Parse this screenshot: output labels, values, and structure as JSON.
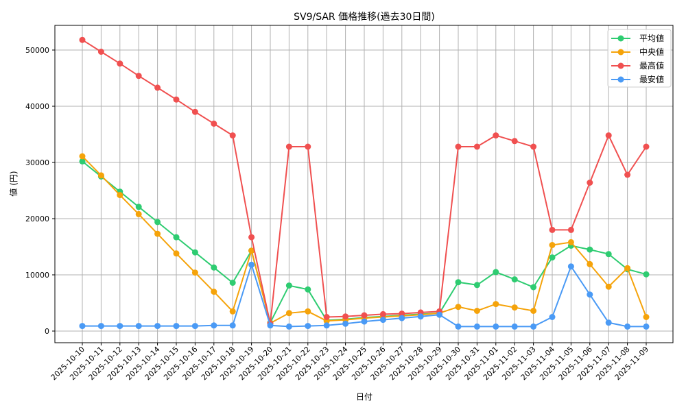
{
  "chart_data": {
    "type": "line",
    "title": "SV9/SAR 価格推移(過去30日間)",
    "xlabel": "日付",
    "ylabel": "値 (円)",
    "ylim": [
      -2000,
      54500
    ],
    "yticks": [
      0,
      10000,
      20000,
      30000,
      40000,
      50000
    ],
    "grid": true,
    "legend_position": "upper right",
    "categories": [
      "2025-10-10",
      "2025-10-11",
      "2025-10-12",
      "2025-10-13",
      "2025-10-14",
      "2025-10-15",
      "2025-10-16",
      "2025-10-17",
      "2025-10-18",
      "2025-10-19",
      "2025-10-20",
      "2025-10-21",
      "2025-10-22",
      "2025-10-23",
      "2025-10-24",
      "2025-10-25",
      "2025-10-26",
      "2025-10-27",
      "2025-10-28",
      "2025-10-29",
      "2025-10-30",
      "2025-10-31",
      "2025-11-01",
      "2025-11-02",
      "2025-11-03",
      "2025-11-04",
      "2025-11-05",
      "2025-11-06",
      "2025-11-07",
      "2025-11-08",
      "2025-11-09"
    ],
    "series": [
      {
        "name": "平均値",
        "color": "#2ecc71",
        "values": [
          30200,
          27500,
          24800,
          22100,
          19400,
          16700,
          14000,
          11300,
          8600,
          14300,
          1500,
          8100,
          7400,
          1900,
          2100,
          2400,
          2600,
          2800,
          3000,
          3200,
          8700,
          8200,
          10500,
          9200,
          7800,
          13100,
          15200,
          14500,
          13700,
          11000,
          10100
        ]
      },
      {
        "name": "中央値",
        "color": "#f5a30a",
        "values": [
          31100,
          27700,
          24200,
          20800,
          17300,
          13800,
          10400,
          7000,
          3500,
          14300,
          1400,
          3200,
          3500,
          1800,
          2000,
          2300,
          2500,
          2700,
          2900,
          3200,
          4300,
          3600,
          4800,
          4200,
          3600,
          15300,
          15800,
          11900,
          7900,
          11200,
          2500
        ]
      },
      {
        "name": "最高値",
        "color": "#f05050",
        "values": [
          51800,
          49700,
          47600,
          45400,
          43300,
          41200,
          39000,
          36900,
          34800,
          16700,
          1300,
          32800,
          32800,
          2500,
          2600,
          2800,
          3000,
          3100,
          3300,
          3500,
          32800,
          32800,
          34800,
          33800,
          32800,
          18000,
          18000,
          26400,
          34800,
          27800,
          32800
        ]
      },
      {
        "name": "最安値",
        "color": "#4a9af5",
        "values": [
          900,
          900,
          900,
          900,
          900,
          900,
          900,
          1000,
          1000,
          11800,
          1000,
          800,
          900,
          1000,
          1300,
          1700,
          2000,
          2300,
          2600,
          2900,
          800,
          800,
          800,
          800,
          800,
          2500,
          11500,
          6500,
          1500,
          800,
          800
        ]
      }
    ]
  },
  "legend": {
    "items": [
      {
        "label": "平均値",
        "color": "#2ecc71"
      },
      {
        "label": "中央値",
        "color": "#f5a30a"
      },
      {
        "label": "最高値",
        "color": "#f05050"
      },
      {
        "label": "最安値",
        "color": "#4a9af5"
      }
    ]
  }
}
